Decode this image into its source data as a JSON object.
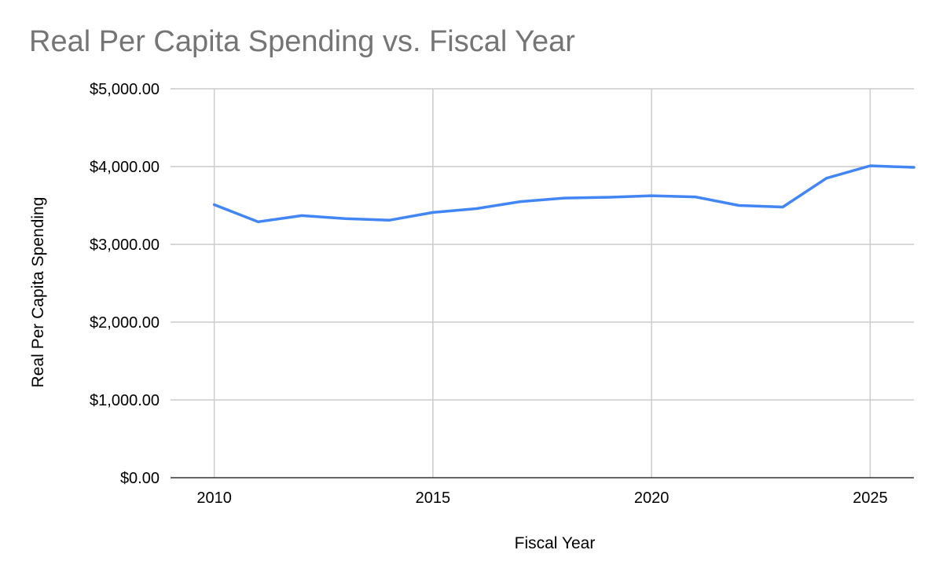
{
  "chart_data": {
    "type": "line",
    "title": "Real Per Capita Spending vs. Fiscal Year",
    "xlabel": "Fiscal Year",
    "ylabel": "Real Per Capita Spending",
    "xlim": [
      2009,
      2026
    ],
    "ylim": [
      0,
      5000
    ],
    "xticks": [
      2010,
      2015,
      2020,
      2025
    ],
    "yticks": [
      0,
      1000,
      2000,
      3000,
      4000,
      5000
    ],
    "ytick_labels": [
      "$0.00",
      "$1,000.00",
      "$2,000.00",
      "$3,000.00",
      "$4,000.00",
      "$5,000.00"
    ],
    "grid": true,
    "series": [
      {
        "name": "Real Per Capita Spending",
        "color": "#4285f4",
        "x": [
          2010,
          2011,
          2012,
          2013,
          2014,
          2015,
          2016,
          2017,
          2018,
          2019,
          2020,
          2021,
          2022,
          2023,
          2024,
          2025,
          2026
        ],
        "values": [
          3510,
          3290,
          3370,
          3330,
          3310,
          3410,
          3460,
          3550,
          3595,
          3605,
          3625,
          3610,
          3500,
          3480,
          3850,
          4010,
          3990
        ]
      }
    ]
  }
}
